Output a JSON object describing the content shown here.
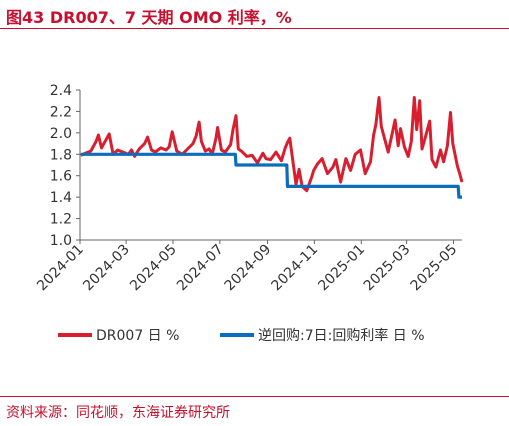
{
  "header": {
    "title": "图43  DR007、7 天期 OMO 利率，%"
  },
  "footer": {
    "source": "资料来源：同花顺，东海证券研究所"
  },
  "colors": {
    "accent": "#c8102e",
    "dr007": "#d71f30",
    "omo": "#0a6ebd",
    "axis": "#666666"
  },
  "chart_data": {
    "type": "line",
    "title": "DR007、7 天期 OMO 利率，%",
    "xlabel": "",
    "ylabel": "",
    "ylim": [
      1.0,
      2.4
    ],
    "yticks": [
      1.0,
      1.2,
      1.4,
      1.6,
      1.8,
      2.0,
      2.2,
      2.4
    ],
    "xlim": [
      "2024-01-01",
      "2025-05-12"
    ],
    "xticks": [
      "2024-01",
      "2024-03",
      "2024-05",
      "2024-07",
      "2024-09",
      "2024-11",
      "2025-01",
      "2025-03",
      "2025-05"
    ],
    "grid": false,
    "legend": "bottom",
    "series": [
      {
        "name": "DR007 日 %",
        "color": "#d71f30",
        "points": [
          [
            "2024-01-02",
            1.79
          ],
          [
            "2024-01-08",
            1.81
          ],
          [
            "2024-01-15",
            1.83
          ],
          [
            "2024-01-22",
            1.92
          ],
          [
            "2024-01-25",
            1.98
          ],
          [
            "2024-01-29",
            1.86
          ],
          [
            "2024-02-05",
            1.95
          ],
          [
            "2024-02-08",
            1.99
          ],
          [
            "2024-02-13",
            1.8
          ],
          [
            "2024-02-19",
            1.84
          ],
          [
            "2024-02-26",
            1.82
          ],
          [
            "2024-03-04",
            1.8
          ],
          [
            "2024-03-08",
            1.84
          ],
          [
            "2024-03-12",
            1.78
          ],
          [
            "2024-03-18",
            1.85
          ],
          [
            "2024-03-25",
            1.9
          ],
          [
            "2024-03-29",
            1.96
          ],
          [
            "2024-04-03",
            1.84
          ],
          [
            "2024-04-08",
            1.82
          ],
          [
            "2024-04-15",
            1.86
          ],
          [
            "2024-04-22",
            1.84
          ],
          [
            "2024-04-26",
            1.87
          ],
          [
            "2024-04-30",
            2.01
          ],
          [
            "2024-05-06",
            1.83
          ],
          [
            "2024-05-13",
            1.8
          ],
          [
            "2024-05-20",
            1.85
          ],
          [
            "2024-05-27",
            1.9
          ],
          [
            "2024-05-31",
            1.97
          ],
          [
            "2024-06-04",
            2.1
          ],
          [
            "2024-06-07",
            1.92
          ],
          [
            "2024-06-12",
            1.83
          ],
          [
            "2024-06-17",
            1.85
          ],
          [
            "2024-06-21",
            1.8
          ],
          [
            "2024-06-26",
            1.95
          ],
          [
            "2024-06-28",
            2.05
          ],
          [
            "2024-07-03",
            1.84
          ],
          [
            "2024-07-08",
            1.82
          ],
          [
            "2024-07-15",
            1.89
          ],
          [
            "2024-07-18",
            2.03
          ],
          [
            "2024-07-22",
            2.16
          ],
          [
            "2024-07-25",
            1.85
          ],
          [
            "2024-07-29",
            1.83
          ],
          [
            "2024-08-05",
            1.78
          ],
          [
            "2024-08-12",
            1.79
          ],
          [
            "2024-08-19",
            1.72
          ],
          [
            "2024-08-26",
            1.81
          ],
          [
            "2024-08-30",
            1.76
          ],
          [
            "2024-09-05",
            1.75
          ],
          [
            "2024-09-12",
            1.82
          ],
          [
            "2024-09-19",
            1.74
          ],
          [
            "2024-09-24",
            1.86
          ],
          [
            "2024-09-27",
            1.91
          ],
          [
            "2024-09-30",
            1.95
          ],
          [
            "2024-10-08",
            1.52
          ],
          [
            "2024-10-12",
            1.66
          ],
          [
            "2024-10-16",
            1.5
          ],
          [
            "2024-10-22",
            1.46
          ],
          [
            "2024-10-28",
            1.58
          ],
          [
            "2024-10-31",
            1.65
          ],
          [
            "2024-11-05",
            1.71
          ],
          [
            "2024-11-11",
            1.76
          ],
          [
            "2024-11-18",
            1.62
          ],
          [
            "2024-11-25",
            1.68
          ],
          [
            "2024-11-29",
            1.75
          ],
          [
            "2024-12-05",
            1.54
          ],
          [
            "2024-12-12",
            1.76
          ],
          [
            "2024-12-18",
            1.65
          ],
          [
            "2024-12-24",
            1.8
          ],
          [
            "2024-12-31",
            1.84
          ],
          [
            "2025-01-06",
            1.62
          ],
          [
            "2025-01-13",
            1.73
          ],
          [
            "2025-01-17",
            1.98
          ],
          [
            "2025-01-20",
            2.08
          ],
          [
            "2025-01-24",
            2.33
          ],
          [
            "2025-01-27",
            2.06
          ],
          [
            "2025-02-05",
            1.82
          ],
          [
            "2025-02-10",
            1.99
          ],
          [
            "2025-02-14",
            2.12
          ],
          [
            "2025-02-18",
            1.88
          ],
          [
            "2025-02-21",
            2.04
          ],
          [
            "2025-02-26",
            1.87
          ],
          [
            "2025-03-03",
            1.78
          ],
          [
            "2025-03-07",
            1.92
          ],
          [
            "2025-03-11",
            2.33
          ],
          [
            "2025-03-14",
            2.03
          ],
          [
            "2025-03-18",
            2.3
          ],
          [
            "2025-03-21",
            1.85
          ],
          [
            "2025-03-25",
            1.95
          ],
          [
            "2025-03-31",
            2.11
          ],
          [
            "2025-04-03",
            1.75
          ],
          [
            "2025-04-08",
            1.68
          ],
          [
            "2025-04-14",
            1.84
          ],
          [
            "2025-04-18",
            1.73
          ],
          [
            "2025-04-23",
            1.88
          ],
          [
            "2025-04-27",
            2.19
          ],
          [
            "2025-04-30",
            1.9
          ],
          [
            "2025-05-06",
            1.69
          ],
          [
            "2025-05-09",
            1.62
          ],
          [
            "2025-05-12",
            1.54
          ]
        ]
      },
      {
        "name": "逆回购:7日:回购利率 日 %",
        "color": "#0a6ebd",
        "points": [
          [
            "2024-01-02",
            1.8
          ],
          [
            "2024-07-21",
            1.8
          ],
          [
            "2024-07-22",
            1.7
          ],
          [
            "2024-09-26",
            1.7
          ],
          [
            "2024-09-27",
            1.5
          ],
          [
            "2025-05-07",
            1.5
          ],
          [
            "2025-05-08",
            1.4
          ],
          [
            "2025-05-12",
            1.4
          ]
        ]
      }
    ]
  }
}
